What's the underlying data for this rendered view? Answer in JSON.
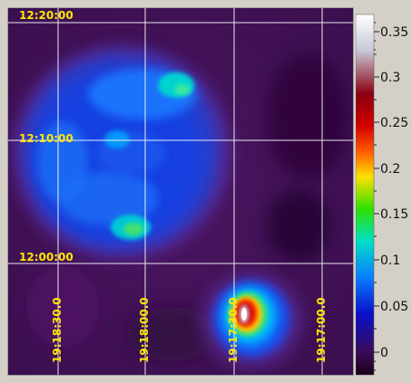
{
  "image": {
    "declination_labels": [
      "12:20:00",
      "12:10:00",
      "12:00:00"
    ],
    "right_ascension_labels": [
      "19:18:30.0",
      "19:18:00.0",
      "19:17:30.0",
      "19:17:00.0"
    ]
  },
  "colorbar": {
    "tick_labels": [
      "0.35",
      "0.3",
      "0.25",
      "0.2",
      "0.15",
      "0.1",
      "0.05",
      "0"
    ],
    "colors": [
      "#1a0014",
      "#3a0a55",
      "#0a10c8",
      "#0a7cff",
      "#00e0c8",
      "#2fe000",
      "#ffe000",
      "#ff5a00",
      "#d40000",
      "#8a0010",
      "#c8c8d8",
      "#ffffff"
    ]
  }
}
